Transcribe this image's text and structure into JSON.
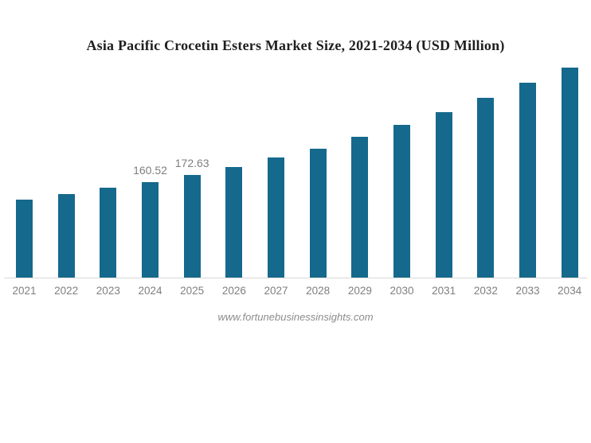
{
  "page": {
    "watermark": "www.fortunebusinessinsights.com"
  },
  "chart_data": {
    "type": "bar",
    "title": "Asia Pacific Crocetin Esters Market Size, 2021-2034 (USD Million)",
    "categories": [
      "2021",
      "2022",
      "2023",
      "2024",
      "2025",
      "2026",
      "2027",
      "2028",
      "2029",
      "2030",
      "2031",
      "2032",
      "2033",
      "2034"
    ],
    "values": [
      130.4,
      140.4,
      151.2,
      160.52,
      172.63,
      185.9,
      201.3,
      215.5,
      236.3,
      256.4,
      276.9,
      301.2,
      326.9,
      352.4
    ],
    "data_labels": [
      "",
      "",
      "",
      "160.52",
      "172.63",
      "",
      "",
      "",
      "",
      "",
      "",
      "",
      "",
      ""
    ],
    "labeled_points_note": "only 2024 and 2025 carry visible value labels; other values estimated from bar heights",
    "xlabel": "",
    "ylabel": "",
    "ylim": [
      0,
      380
    ],
    "grid": false,
    "legend": false,
    "colors": {
      "bar": "#15698c",
      "axis_line": "#d9d9d9",
      "tick_label": "#7f7f7f",
      "data_label": "#7f7f7f",
      "title": "#1f1f1f",
      "watermark": "#8c8c8c",
      "background": "#ffffff"
    }
  }
}
